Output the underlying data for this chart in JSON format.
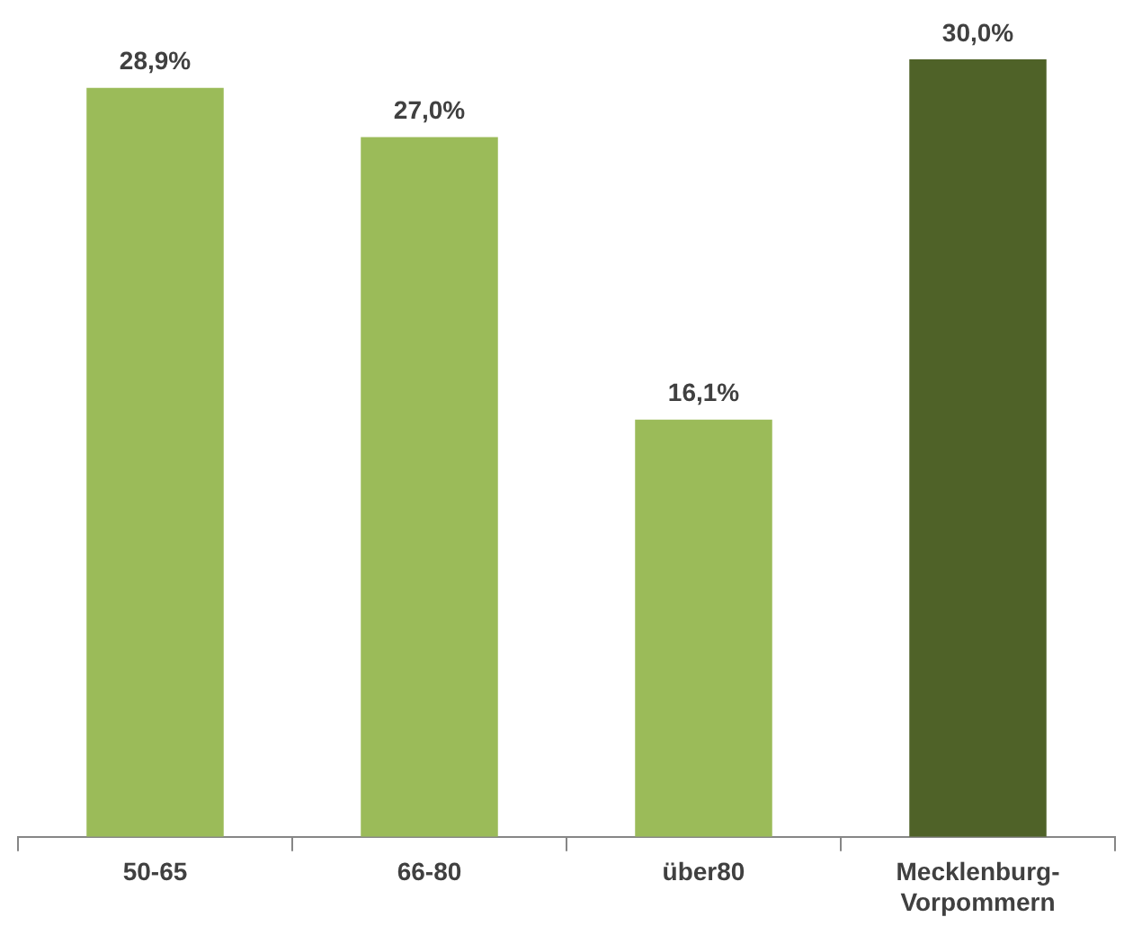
{
  "chart_data": {
    "type": "bar",
    "categories": [
      "50-65",
      "66-80",
      "über80",
      "Mecklenburg-Vorpommern"
    ],
    "values": [
      28.9,
      27.0,
      16.1,
      30.0
    ],
    "colors": [
      "#9bbb59",
      "#9bbb59",
      "#9bbb59",
      "#4f6228"
    ],
    "value_labels": [
      "28,9%",
      "27,0%",
      "16,1%",
      "30,0%"
    ],
    "ylim": [
      0,
      30
    ],
    "tick_labels": "x",
    "grid": false,
    "legend": false
  }
}
